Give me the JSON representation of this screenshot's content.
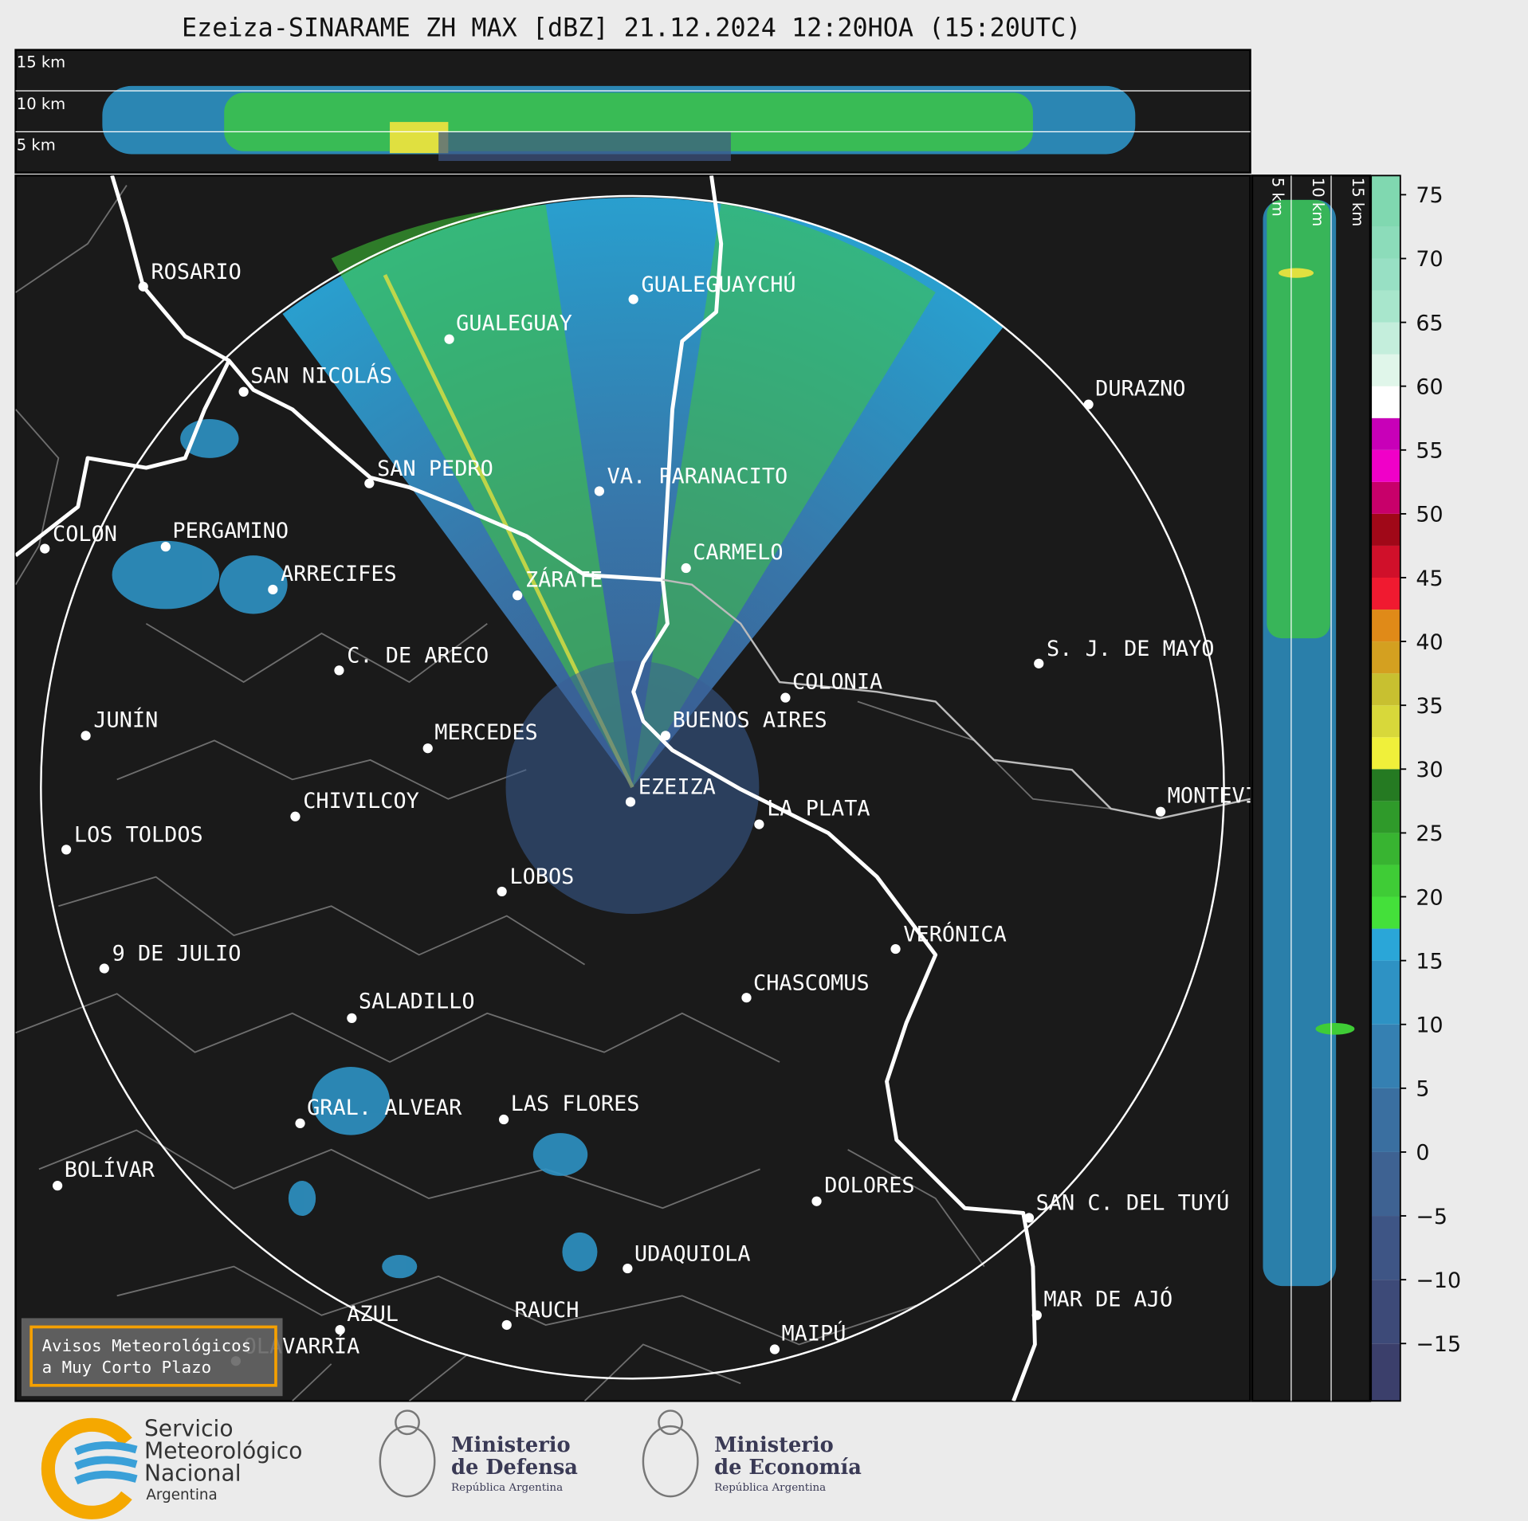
{
  "title": "Ezeiza-SINARAME ZH MAX [dBZ] 21.12.2024 12:20HOA (15:20UTC)",
  "top_panel": {
    "height_labels": [
      "15 km",
      "10 km",
      "5 km"
    ]
  },
  "side_panel": {
    "height_labels": [
      "5 km",
      "10 km",
      "15 km"
    ]
  },
  "cities": [
    "ROSARIO",
    "GUALEGUAYCHÚ",
    "GUALEGUAY",
    "SAN NICOLÁS",
    "DURAZNO",
    "SAN PEDRO",
    "VA. PARANACITO",
    "COLON",
    "PERGAMINO",
    "CARMELO",
    "ARRECIFES",
    "ZÁRATE",
    "S. J. DE MAYO",
    "C. DE ARECO",
    "COLONIA",
    "JUNÍN",
    "BUENOS AIRES",
    "MERCEDES",
    "EZEIZA",
    "CHIVILCOY",
    "MONTEVIDEO",
    "LA PLATA",
    "LOS TOLDOS",
    "LOBOS",
    "VERÓNICA",
    "9 DE JULIO",
    "CHASCOMUS",
    "SALADILLO",
    "GRAL. ALVEAR",
    "LAS FLORES",
    "BOLÍVAR",
    "DOLORES",
    "SAN C. DEL TUYÚ",
    "UDAQUIOLA",
    "MAR DE AJÓ",
    "AZUL",
    "RAUCH",
    "MAIPÚ",
    "OLAVARRÍA"
  ],
  "notice": {
    "lines": [
      "Avisos Meteorológicos",
      "a Muy Corto Plazo"
    ]
  },
  "logos": {
    "smn": [
      "Servicio",
      "Meteorológico",
      "Nacional",
      "Argentina"
    ],
    "defensa": [
      "Ministerio",
      "de Defensa",
      "República Argentina"
    ],
    "economia": [
      "Ministerio",
      "de Economía",
      "República Argentina"
    ]
  },
  "chart_data": {
    "type": "colorbar",
    "ylim": [
      -19.5,
      76.5
    ],
    "yticks": [
      {
        "value": -15,
        "label": "−15"
      },
      {
        "value": -10,
        "label": "−10"
      },
      {
        "value": -5,
        "label": "−5"
      },
      0,
      5,
      10,
      15,
      20,
      25,
      30,
      35,
      40,
      45,
      50,
      55,
      60,
      65,
      70,
      75
    ],
    "bounds": [
      -19.5,
      -15,
      -10,
      -5,
      0,
      5,
      10,
      15,
      17.5,
      20,
      22.5,
      25,
      27.5,
      30,
      32.5,
      35,
      37.5,
      40,
      42.5,
      45,
      47.5,
      50,
      52.5,
      55,
      57.5,
      60,
      62.5,
      65,
      67.5,
      70,
      72.5,
      76.5
    ],
    "colors": [
      "#3b3f6b",
      "#3d4a78",
      "#3e5585",
      "#3e6292",
      "#3a6fa0",
      "#3580b2",
      "#2e92c4",
      "#2aa6d8",
      "#44e03a",
      "#3fcc36",
      "#38b431",
      "#2f9a2a",
      "#257a22",
      "#f0f03a",
      "#d8d83a",
      "#c8c030",
      "#d4a020",
      "#e08a18",
      "#f01a30",
      "#d0102a",
      "#a00818",
      "#c8006a",
      "#f000c8",
      "#c800b8",
      "#ffffff",
      "#e0f6ea",
      "#c4eedc",
      "#a8e6cc",
      "#98e0c4",
      "#8cdcba",
      "#80d8b0"
    ]
  }
}
